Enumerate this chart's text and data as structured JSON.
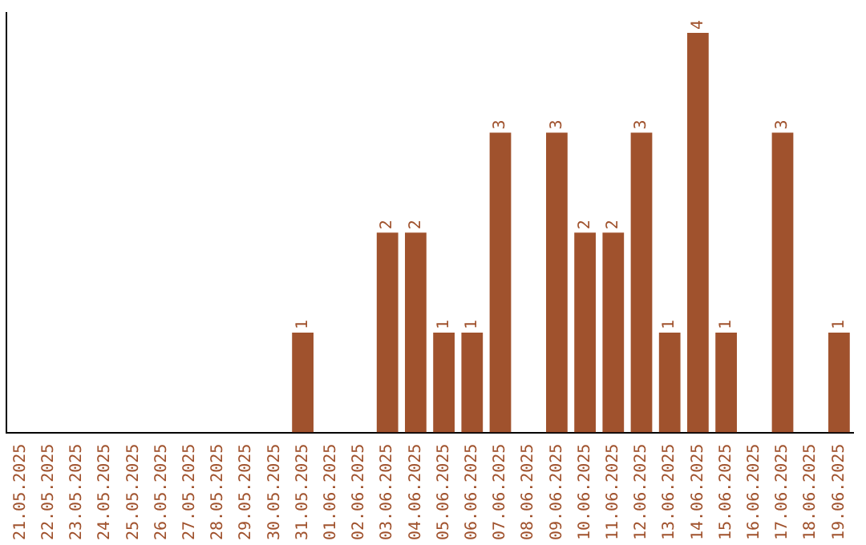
{
  "chart_data": {
    "type": "bar",
    "categories": [
      "21.05.2025",
      "22.05.2025",
      "23.05.2025",
      "24.05.2025",
      "25.05.2025",
      "26.05.2025",
      "27.05.2025",
      "28.05.2025",
      "29.05.2025",
      "30.05.2025",
      "31.05.2025",
      "01.06.2025",
      "02.06.2025",
      "03.06.2025",
      "04.06.2025",
      "05.06.2025",
      "06.06.2025",
      "07.06.2025",
      "08.06.2025",
      "09.06.2025",
      "10.06.2025",
      "11.06.2025",
      "12.06.2025",
      "13.06.2025",
      "14.06.2025",
      "15.06.2025",
      "16.06.2025",
      "17.06.2025",
      "18.06.2025",
      "19.06.2025"
    ],
    "values": [
      0,
      0,
      0,
      0,
      0,
      0,
      0,
      0,
      0,
      0,
      1,
      0,
      0,
      2,
      2,
      1,
      1,
      3,
      0,
      3,
      2,
      2,
      3,
      1,
      4,
      1,
      0,
      3,
      0,
      1
    ],
    "value_labels": [
      null,
      null,
      null,
      null,
      null,
      null,
      null,
      null,
      null,
      null,
      "1",
      null,
      null,
      "2",
      "2",
      "1",
      "1",
      "3",
      null,
      "3",
      "2",
      "2",
      "3",
      "1",
      "4",
      "1",
      null,
      "3",
      null,
      "1"
    ],
    "color": "#a0522d",
    "ylim": [
      0,
      4.2
    ],
    "tick_labels": "x",
    "grid": false,
    "legend": false
  }
}
